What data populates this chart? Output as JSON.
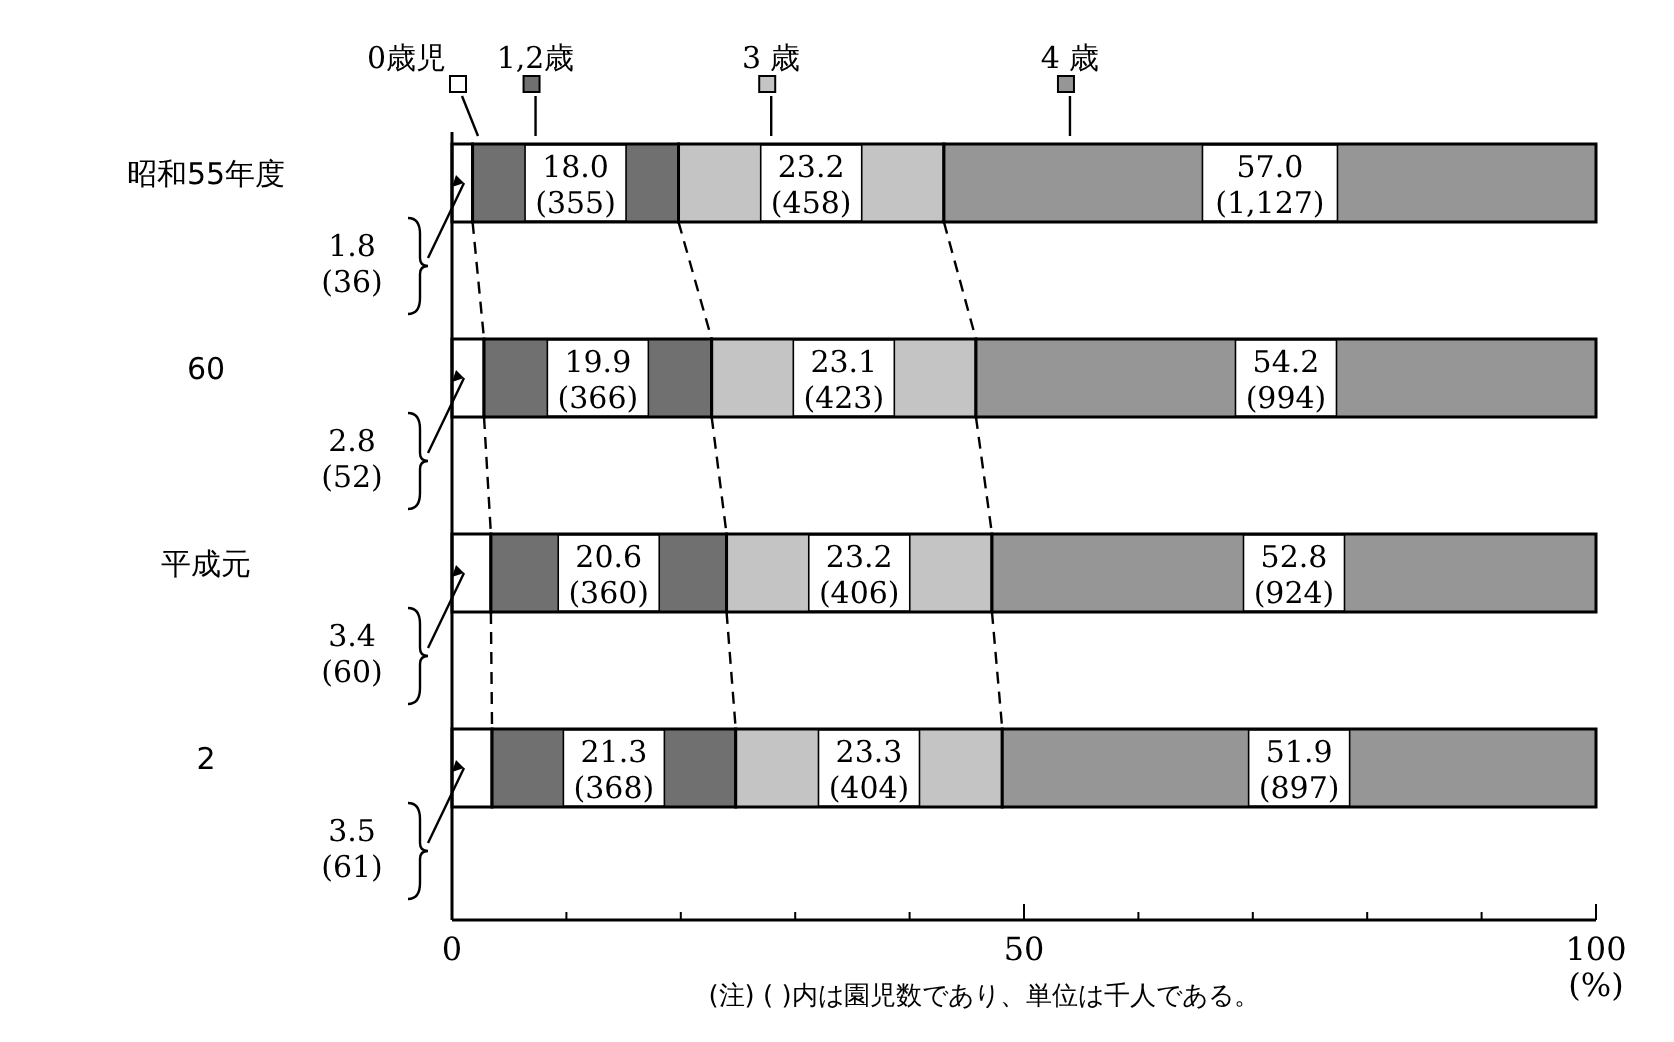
{
  "chart_data": {
    "type": "bar",
    "orientation": "horizontal",
    "stacked": true,
    "categories": [
      "昭和55年度",
      "60",
      "平成元",
      "2"
    ],
    "series": [
      {
        "name": "0歳児",
        "color": "#ffffff",
        "values": [
          1.8,
          2.8,
          3.4,
          3.5
        ],
        "value_labels": [
          "1.8 (36)",
          "2.8 (52)",
          "3.4 (60)",
          "3.5 (61)"
        ]
      },
      {
        "name": "1,2歳",
        "color": "#707070",
        "values": [
          18.0,
          19.9,
          20.6,
          21.3
        ],
        "value_labels": [
          "18.0 (355)",
          "19.9 (366)",
          "20.6 (360)",
          "21.3 (368)"
        ]
      },
      {
        "name": "3 歳",
        "color": "#c4c4c4",
        "values": [
          23.2,
          23.1,
          23.2,
          23.3
        ],
        "value_labels": [
          "23.2 (458)",
          "23.1 (423)",
          "23.2 (406)",
          "23.3 (404)"
        ]
      },
      {
        "name": "4 歳",
        "color": "#969696",
        "values": [
          57.0,
          54.2,
          52.8,
          51.9
        ],
        "value_labels": [
          "57.0 (1,127)",
          "54.2 (994)",
          "52.8 (924)",
          "51.9 (897)"
        ]
      }
    ],
    "xlim": [
      0,
      100
    ],
    "xticks": [
      0,
      50,
      100
    ],
    "xlabel": "(%)",
    "legend": "top",
    "annotations": [
      "(注) ( )内は園児数であり、単位は千人である。"
    ]
  }
}
